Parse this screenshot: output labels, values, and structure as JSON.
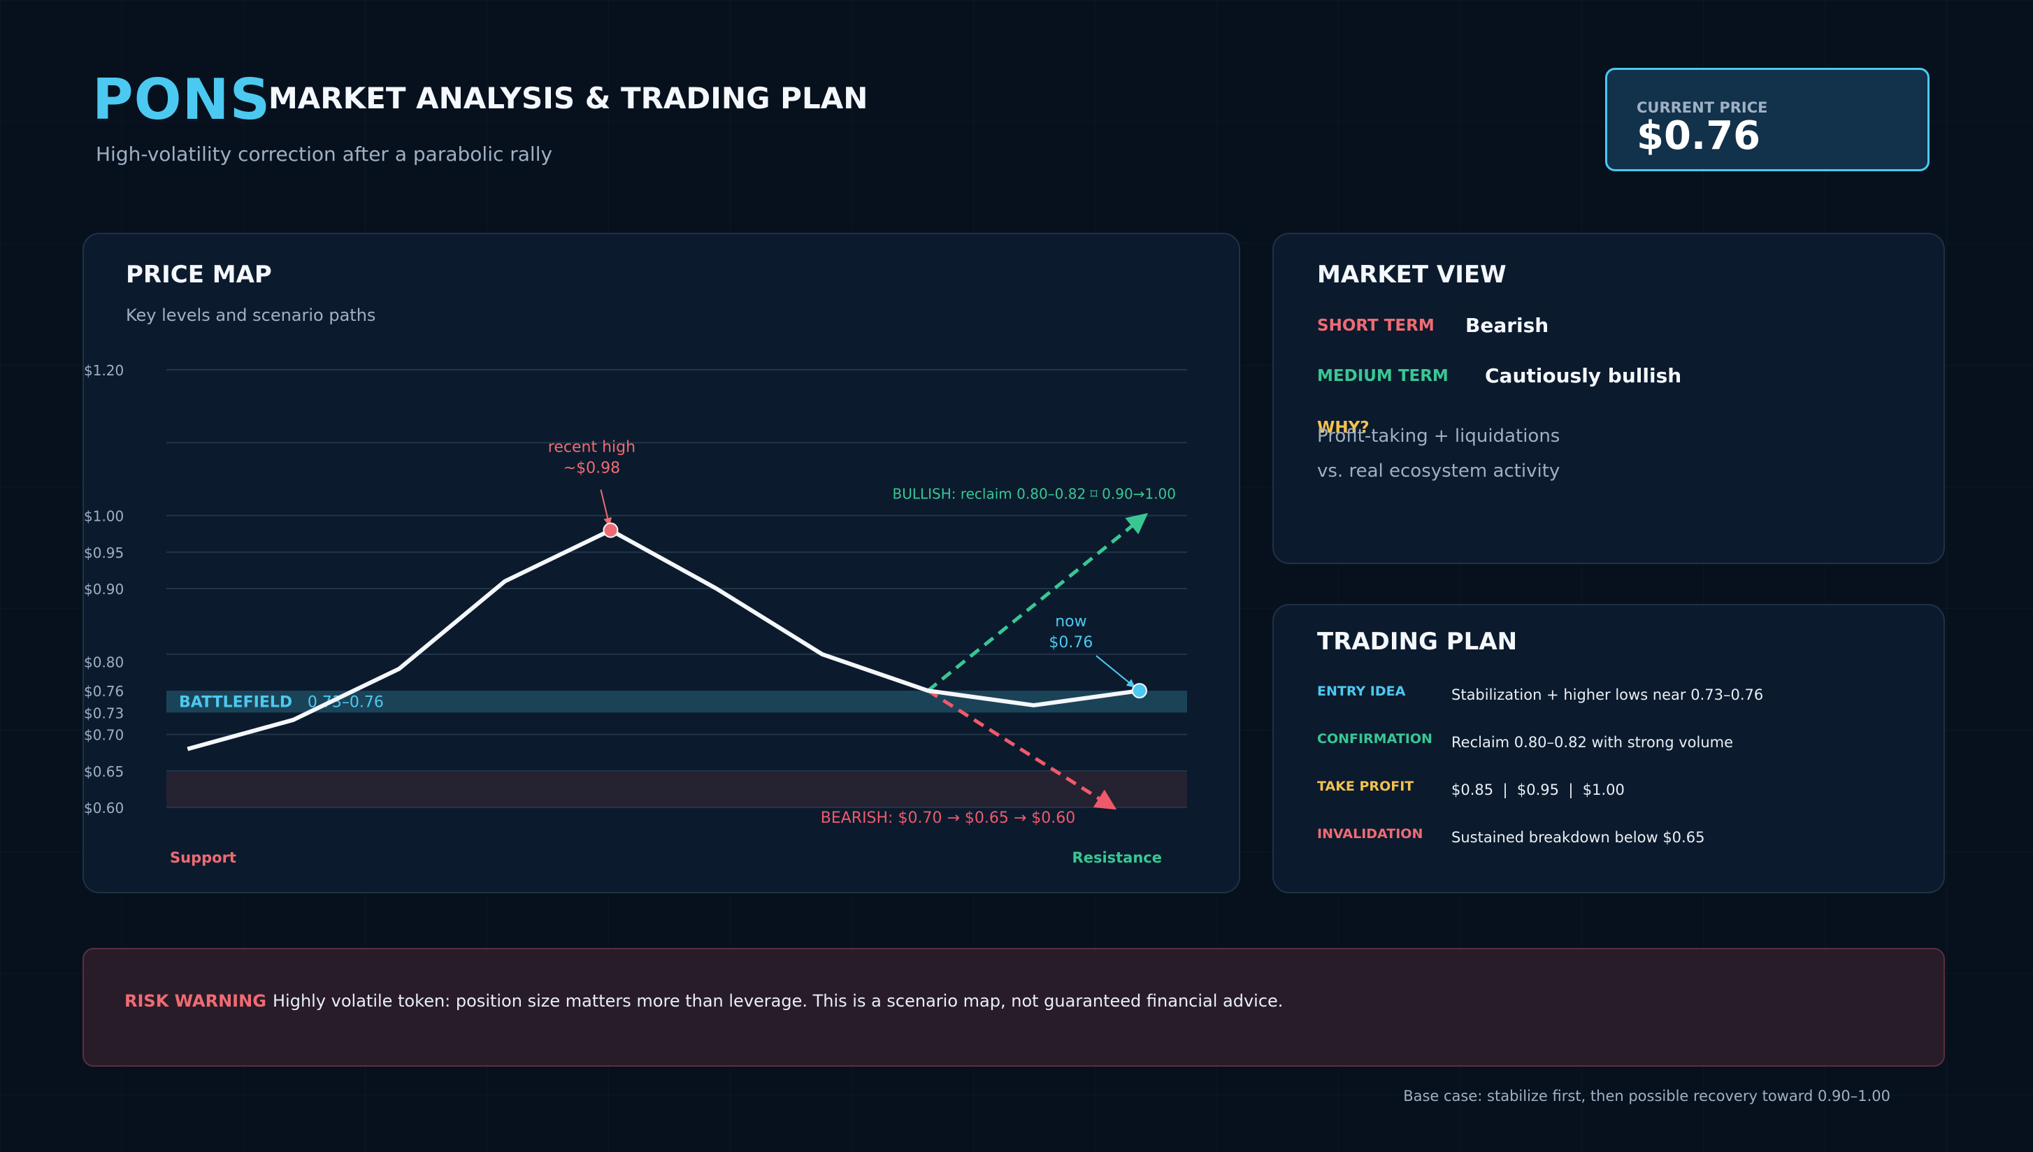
{
  "header": {
    "brand": "PONS",
    "title": "MARKET ANALYSIS & TRADING PLAN",
    "subtitle": "High-volatility correction after a parabolic rally"
  },
  "current_price": {
    "label": "CURRENT PRICE",
    "value": "$0.76"
  },
  "price_map": {
    "title": "PRICE MAP",
    "subtitle": "Key levels and scenario paths",
    "support_label": "Support",
    "resistance_label": "Resistance"
  },
  "chart_data": {
    "type": "line",
    "y_range": [
      0.6,
      1.2
    ],
    "y_ticks": [
      {
        "value": 1.2,
        "label": "$1.20"
      },
      {
        "value": 1.0,
        "label": "$1.00"
      },
      {
        "value": 0.95,
        "label": "$0.95"
      },
      {
        "value": 0.9,
        "label": "$0.90"
      },
      {
        "value": 0.8,
        "label": "$0.80"
      },
      {
        "value": 0.76,
        "label": "$0.76"
      },
      {
        "value": 0.73,
        "label": "$0.73"
      },
      {
        "value": 0.7,
        "label": "$0.70"
      },
      {
        "value": 0.65,
        "label": "$0.65"
      },
      {
        "value": 0.6,
        "label": "$0.60"
      }
    ],
    "gridlines": [
      1.2,
      1.1,
      1.0,
      0.95,
      0.9,
      0.81,
      0.7,
      0.65,
      0.6
    ],
    "price_path": [
      {
        "t": 0,
        "y": 0.68
      },
      {
        "t": 1,
        "y": 0.72
      },
      {
        "t": 2,
        "y": 0.79
      },
      {
        "t": 3,
        "y": 0.91
      },
      {
        "t": 4,
        "y": 0.98
      },
      {
        "t": 5,
        "y": 0.9
      },
      {
        "t": 6,
        "y": 0.81
      },
      {
        "t": 7,
        "y": 0.76
      },
      {
        "t": 8,
        "y": 0.74
      },
      {
        "t": 9,
        "y": 0.76
      }
    ],
    "t_range": [
      -0.2,
      9.45
    ],
    "zones": [
      {
        "name": "battlefield",
        "from": 0.73,
        "to": 0.76,
        "color": "#1f4b60"
      },
      {
        "name": "support-zone",
        "from": 0.6,
        "to": 0.65,
        "color": "#2a2533"
      }
    ],
    "battlefield_label": "BATTLEFIELD",
    "battlefield_range": "0.73–0.76",
    "peak": {
      "t": 4,
      "y": 0.98,
      "label_line1": "recent high",
      "label_line2": "~$0.98"
    },
    "now": {
      "t": 9,
      "y": 0.76,
      "label_line1": "now",
      "label_line2": "$0.76"
    },
    "bullish": {
      "from": {
        "t": 7,
        "y": 0.76
      },
      "to": {
        "t": 9.05,
        "y": 1.0
      },
      "label": "BULLISH: reclaim 0.80–0.82 ⌑ 0.90→1.00"
    },
    "bearish": {
      "from": {
        "t": 7,
        "y": 0.76
      },
      "to": {
        "t": 8.75,
        "y": 0.6
      },
      "label": "BEARISH: $0.70 → $0.65 → $0.60"
    },
    "colors": {
      "line": "#f4f7fb",
      "peak": "#ef6b73",
      "now": "#4cc9f0",
      "bullish": "#38c793",
      "bearish": "#ef5a6b",
      "grid": "#223549"
    }
  },
  "market_view": {
    "title": "MARKET VIEW",
    "short_term_label": "SHORT TERM",
    "short_term_value": "Bearish",
    "medium_term_label": "MEDIUM TERM",
    "medium_term_value": "Cautiously bullish",
    "why_label": "WHY?",
    "why_line1": "Profit-taking + liquidations",
    "why_line2": "vs. real ecosystem activity"
  },
  "trading_plan": {
    "title": "TRADING PLAN",
    "rows": [
      {
        "label": "ENTRY IDEA",
        "value": "Stabilization + higher lows near 0.73–0.76",
        "color": "#4cc9f0"
      },
      {
        "label": "CONFIRMATION",
        "value": "Reclaim 0.80–0.82 with strong volume",
        "color": "#38c793"
      },
      {
        "label": "TAKE PROFIT",
        "value": "$0.85  |  $0.95  |  $1.00",
        "color": "#f2c14e"
      },
      {
        "label": "INVALIDATION",
        "value": "Sustained breakdown below $0.65",
        "color": "#ef6b73"
      }
    ]
  },
  "risk": {
    "label": "RISK WARNING",
    "text": "Highly volatile token: position size matters more than leverage. This is a scenario map, not guaranteed financial advice."
  },
  "footnote": "Base case: stabilize first, then possible recovery toward 0.90–1.00"
}
